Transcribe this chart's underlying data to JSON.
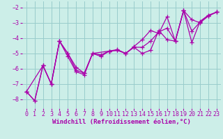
{
  "xlabel": "Windchill (Refroidissement éolien,°C)",
  "background_color": "#cceee8",
  "line_color": "#aa00aa",
  "grid_color": "#99cccc",
  "xlim": [
    -0.5,
    23.5
  ],
  "ylim": [
    -8.6,
    -1.6
  ],
  "xticks": [
    0,
    1,
    2,
    3,
    4,
    5,
    6,
    7,
    8,
    9,
    10,
    11,
    12,
    13,
    14,
    15,
    16,
    17,
    18,
    19,
    20,
    21,
    22,
    23
  ],
  "yticks": [
    -8,
    -7,
    -6,
    -5,
    -4,
    -3,
    -2
  ],
  "line1_x": [
    0,
    1,
    2,
    3,
    4,
    5,
    6,
    7,
    8,
    9,
    10,
    11,
    12,
    13,
    14,
    15,
    16,
    17,
    18,
    19,
    20,
    21,
    22,
    23
  ],
  "line1_y": [
    -7.5,
    -8.1,
    -5.8,
    -7.0,
    -4.2,
    -5.0,
    -6.1,
    -6.3,
    -5.0,
    -5.2,
    -4.85,
    -4.8,
    -5.0,
    -4.6,
    -5.0,
    -4.8,
    -3.5,
    -4.1,
    -4.2,
    -2.2,
    -4.3,
    -2.9,
    -2.5,
    -2.3
  ],
  "line2_x": [
    0,
    1,
    2,
    3,
    4,
    5,
    6,
    7,
    8,
    10,
    11,
    12,
    13,
    14,
    15,
    16,
    17,
    18,
    19,
    20,
    21,
    22,
    23
  ],
  "line2_y": [
    -7.5,
    -8.1,
    -5.8,
    -7.0,
    -4.2,
    -5.2,
    -6.2,
    -6.4,
    -5.0,
    -4.85,
    -4.75,
    -5.0,
    -4.55,
    -4.1,
    -3.5,
    -3.7,
    -2.6,
    -4.2,
    -2.2,
    -2.8,
    -3.0,
    -2.55,
    -2.3
  ],
  "line3_x": [
    0,
    2,
    3,
    4,
    5,
    6,
    7,
    8,
    9,
    10,
    11,
    12,
    13,
    14,
    15,
    16,
    17,
    18,
    19,
    20,
    21,
    22,
    23
  ],
  "line3_y": [
    -7.5,
    -5.8,
    -7.0,
    -4.2,
    -5.0,
    -5.9,
    -6.3,
    -5.0,
    -5.1,
    -4.85,
    -4.8,
    -5.0,
    -4.6,
    -4.6,
    -4.2,
    -3.6,
    -3.35,
    -4.2,
    -2.2,
    -3.55,
    -2.95,
    -2.55,
    -2.3
  ],
  "marker_size": 4,
  "line_width": 0.9,
  "xlabel_fontsize": 6.5,
  "tick_fontsize": 6.0
}
